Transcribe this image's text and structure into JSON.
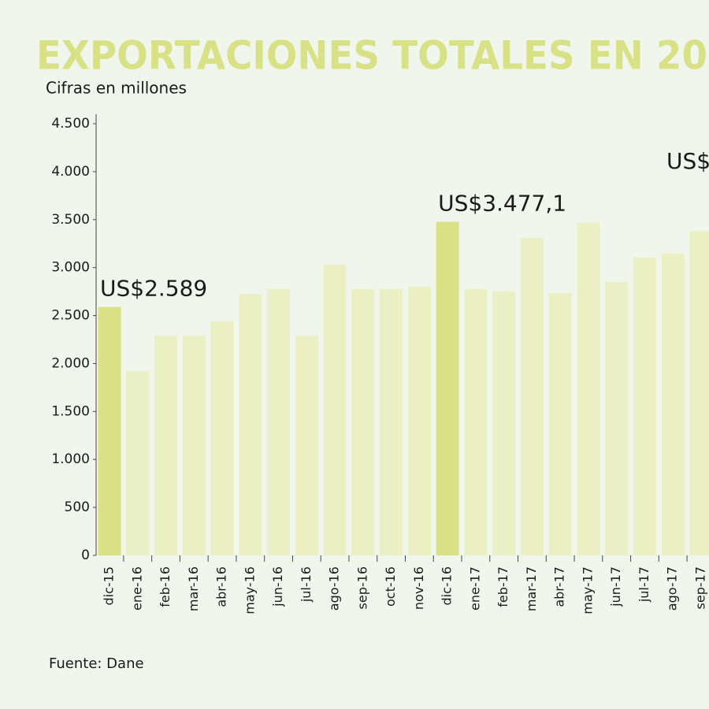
{
  "chart_data": {
    "type": "bar",
    "title": "EXPORTACIONES TOTALES EN 20",
    "subtitle": "Cifras en millones",
    "source": "Fuente: Dane",
    "annotation": "US$",
    "categories": [
      "dic-15",
      "ene-16",
      "feb-16",
      "mar-16",
      "abr-16",
      "may-16",
      "jun-16",
      "jul-16",
      "ago-16",
      "sep-16",
      "oct-16",
      "nov-16",
      "dic-16",
      "ene-17",
      "feb-17",
      "mar-17",
      "abr-17",
      "may-17",
      "jun-17",
      "jul-17",
      "ago-17",
      "sep-17"
    ],
    "values": [
      2589,
      1920,
      2290,
      2290,
      2440,
      2725,
      2775,
      2290,
      3030,
      2775,
      2775,
      2800,
      3477.1,
      2775,
      2750,
      3310,
      2735,
      3470,
      2850,
      3105,
      3150,
      3380
    ],
    "value_labels": [
      "US$2.589",
      null,
      null,
      null,
      null,
      null,
      null,
      null,
      null,
      null,
      null,
      null,
      "US$3.477,1",
      null,
      null,
      null,
      null,
      null,
      null,
      null,
      null,
      null
    ],
    "colors": [
      "#d9e186",
      "#ebf0c4",
      "#ebf0c4",
      "#ebf0c4",
      "#ebf0c4",
      "#ebf0c4",
      "#ebf0c4",
      "#ebf0c4",
      "#ebf0c4",
      "#ebf0c4",
      "#ebf0c4",
      "#ebf0c4",
      "#d9e186",
      "#ebf0c4",
      "#ebf0c4",
      "#ebf0c4",
      "#ebf0c4",
      "#ebf0c4",
      "#ebf0c4",
      "#ebf0c4",
      "#ebf0c4",
      "#ebf0c4"
    ],
    "ylim": [
      0,
      4500
    ],
    "yticks": [
      {
        "value": 0,
        "label": "0"
      },
      {
        "value": 500,
        "label": "500"
      },
      {
        "value": 1000,
        "label": "1.000"
      },
      {
        "value": 1500,
        "label": "1.500"
      },
      {
        "value": 2000,
        "label": "2.000"
      },
      {
        "value": 2500,
        "label": "2.500"
      },
      {
        "value": 3000,
        "label": "3.000"
      },
      {
        "value": 3500,
        "label": "3.500"
      },
      {
        "value": 4000,
        "label": "4.000"
      },
      {
        "value": 4500,
        "label": "4.500"
      }
    ],
    "grid": false
  }
}
